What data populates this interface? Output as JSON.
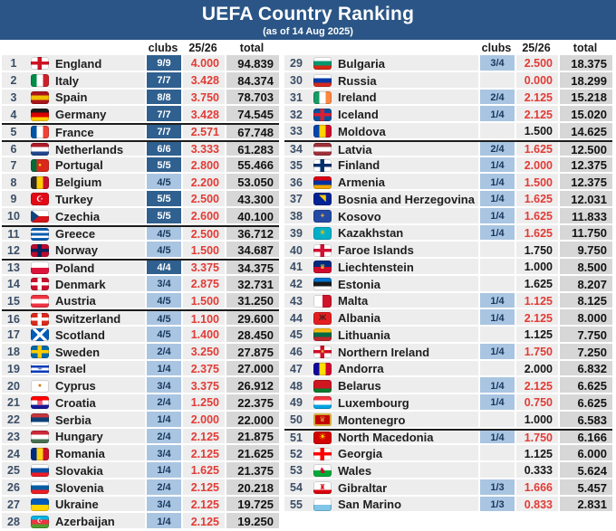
{
  "header": {
    "title": "UEFA Country Ranking",
    "subtitle": "(as of 14 Aug 2025)"
  },
  "columns": {
    "clubs": "clubs",
    "season": "25/26",
    "total": "total"
  },
  "colors": {
    "topbar": "#2A5586",
    "row_bg": "#EDEDED",
    "total_bg": "#D7D7D7",
    "clubs_full_bg": "#2F608F",
    "clubs_partial_bg": "#A9C5E2",
    "season_live": "#E23B36",
    "separator": "#1C1C1C"
  },
  "rows": [
    {
      "rank": 1,
      "country": "England",
      "clubs": "9/9",
      "clubs_style": "full",
      "season": "4.000",
      "season_red": true,
      "total": "94.839",
      "sep": false,
      "flag": {
        "t": "x",
        "bg": "#FFFFFF",
        "cc": "#CE1124"
      }
    },
    {
      "rank": 2,
      "country": "Italy",
      "clubs": "7/7",
      "clubs_style": "full",
      "season": "3.428",
      "season_red": true,
      "total": "84.374",
      "sep": false,
      "flag": {
        "t": "v",
        "c": [
          "#008C45",
          "#FFFFFF",
          "#CD212A"
        ]
      }
    },
    {
      "rank": 3,
      "country": "Spain",
      "clubs": "8/8",
      "clubs_style": "full",
      "season": "3.750",
      "season_red": true,
      "total": "78.703",
      "sep": false,
      "flag": {
        "t": "h",
        "c": [
          "#AA151B",
          "#F1BF00",
          "#AA151B"
        ]
      }
    },
    {
      "rank": 4,
      "country": "Germany",
      "clubs": "7/7",
      "clubs_style": "full",
      "season": "3.428",
      "season_red": true,
      "total": "74.545",
      "sep": false,
      "flag": {
        "t": "h",
        "c": [
          "#1A1A1A",
          "#DD0000",
          "#FFCE00"
        ]
      }
    },
    {
      "rank": 5,
      "country": "France",
      "clubs": "7/7",
      "clubs_style": "full",
      "season": "2.571",
      "season_red": true,
      "total": "67.748",
      "sep": true,
      "flag": {
        "t": "v",
        "c": [
          "#0055A4",
          "#FFFFFF",
          "#EF4135"
        ]
      }
    },
    {
      "rank": 6,
      "country": "Netherlands",
      "clubs": "6/6",
      "clubs_style": "full",
      "season": "3.333",
      "season_red": true,
      "total": "61.283",
      "sep": true,
      "flag": {
        "t": "h",
        "c": [
          "#AE1C28",
          "#FFFFFF",
          "#21468B"
        ]
      }
    },
    {
      "rank": 7,
      "country": "Portugal",
      "clubs": "5/5",
      "clubs_style": "full",
      "season": "2.800",
      "season_red": true,
      "total": "55.466",
      "sep": false,
      "flag": {
        "t": "v",
        "c": [
          "#046A38",
          "#DA291C",
          "#DA291C"
        ],
        "sym": "●",
        "sc": "#FFE900",
        "ss": 6
      }
    },
    {
      "rank": 8,
      "country": "Belgium",
      "clubs": "4/5",
      "clubs_style": "partial",
      "season": "2.200",
      "season_red": true,
      "total": "53.050",
      "sep": false,
      "flag": {
        "t": "v",
        "c": [
          "#2D2926",
          "#FFCD00",
          "#C8102E"
        ]
      }
    },
    {
      "rank": 9,
      "country": "Turkey",
      "clubs": "5/5",
      "clubs_style": "full",
      "season": "2.500",
      "season_red": true,
      "total": "43.300",
      "sep": false,
      "flag": {
        "t": "p",
        "bg": "#E30A17",
        "sym": "☪",
        "sc": "#FFFFFF",
        "ss": 9
      }
    },
    {
      "rank": 10,
      "country": "Czechia",
      "clubs": "5/5",
      "clubs_style": "full",
      "season": "2.600",
      "season_red": true,
      "total": "40.100",
      "sep": false,
      "flag": {
        "t": "h",
        "c": [
          "#FFFFFF",
          "#D7141A"
        ],
        "tri": "#11457E"
      }
    },
    {
      "rank": 11,
      "country": "Greece",
      "clubs": "4/5",
      "clubs_style": "partial",
      "season": "2.500",
      "season_red": true,
      "total": "36.712",
      "sep": true,
      "flag": {
        "t": "h",
        "c": [
          "#0D5EAF",
          "#FFFFFF",
          "#0D5EAF",
          "#FFFFFF",
          "#0D5EAF"
        ]
      }
    },
    {
      "rank": 12,
      "country": "Norway",
      "clubs": "4/5",
      "clubs_style": "partial",
      "season": "1.500",
      "season_red": true,
      "total": "34.687",
      "sep": false,
      "flag": {
        "t": "x",
        "bg": "#BA0C2F",
        "cc": "#00205B"
      }
    },
    {
      "rank": 13,
      "country": "Poland",
      "clubs": "4/4",
      "clubs_style": "full",
      "season": "3.375",
      "season_red": true,
      "total": "34.375",
      "sep": true,
      "flag": {
        "t": "h",
        "c": [
          "#FFFFFF",
          "#DC143C"
        ]
      }
    },
    {
      "rank": 14,
      "country": "Denmark",
      "clubs": "3/4",
      "clubs_style": "partial",
      "season": "2.875",
      "season_red": true,
      "total": "32.731",
      "sep": false,
      "flag": {
        "t": "x",
        "bg": "#C8102E",
        "cc": "#FFFFFF"
      }
    },
    {
      "rank": 15,
      "country": "Austria",
      "clubs": "4/5",
      "clubs_style": "partial",
      "season": "1.500",
      "season_red": true,
      "total": "31.250",
      "sep": false,
      "flag": {
        "t": "h",
        "c": [
          "#EF3340",
          "#FFFFFF",
          "#EF3340"
        ]
      }
    },
    {
      "rank": 16,
      "country": "Switzerland",
      "clubs": "4/5",
      "clubs_style": "partial",
      "season": "1.100",
      "season_red": true,
      "total": "29.600",
      "sep": true,
      "flag": {
        "t": "x",
        "bg": "#DA291C",
        "cc": "#FFFFFF"
      }
    },
    {
      "rank": 17,
      "country": "Scotland",
      "clubs": "4/5",
      "clubs_style": "partial",
      "season": "1.400",
      "season_red": true,
      "total": "28.450",
      "sep": false,
      "flag": {
        "t": "s",
        "bg": "#005EB8",
        "cc": "#FFFFFF"
      }
    },
    {
      "rank": 18,
      "country": "Sweden",
      "clubs": "2/4",
      "clubs_style": "partial",
      "season": "3.250",
      "season_red": true,
      "total": "27.875",
      "sep": false,
      "flag": {
        "t": "x",
        "bg": "#006AA7",
        "cc": "#FECC02"
      }
    },
    {
      "rank": 19,
      "country": "Israel",
      "clubs": "1/4",
      "clubs_style": "partial",
      "season": "2.375",
      "season_red": true,
      "total": "27.000",
      "sep": false,
      "flag": {
        "t": "h",
        "c": [
          "#FFFFFF",
          "#0038B8",
          "#FFFFFF",
          "#0038B8",
          "#FFFFFF"
        ],
        "sym": "✡",
        "sc": "#0038B8",
        "ss": 7
      }
    },
    {
      "rank": 20,
      "country": "Cyprus",
      "clubs": "3/4",
      "clubs_style": "partial",
      "season": "3.375",
      "season_red": true,
      "total": "26.912",
      "sep": false,
      "flag": {
        "t": "p",
        "bg": "#FFFFFF",
        "sym": "●",
        "sc": "#D57800",
        "ss": 7
      }
    },
    {
      "rank": 21,
      "country": "Croatia",
      "clubs": "2/4",
      "clubs_style": "partial",
      "season": "1.250",
      "season_red": true,
      "total": "22.375",
      "sep": false,
      "flag": {
        "t": "h",
        "c": [
          "#FF0000",
          "#FFFFFF",
          "#171796"
        ],
        "sym": "▦",
        "sc": "#D80027",
        "ss": 7
      }
    },
    {
      "rank": 22,
      "country": "Serbia",
      "clubs": "1/4",
      "clubs_style": "partial",
      "season": "2.000",
      "season_red": true,
      "total": "22.000",
      "sep": false,
      "flag": {
        "t": "h",
        "c": [
          "#C6363C",
          "#0C4076",
          "#FFFFFF"
        ]
      }
    },
    {
      "rank": 23,
      "country": "Hungary",
      "clubs": "2/4",
      "clubs_style": "partial",
      "season": "2.125",
      "season_red": true,
      "total": "21.875",
      "sep": false,
      "flag": {
        "t": "h",
        "c": [
          "#CE2939",
          "#FFFFFF",
          "#477050"
        ]
      }
    },
    {
      "rank": 24,
      "country": "Romania",
      "clubs": "3/4",
      "clubs_style": "partial",
      "season": "2.125",
      "season_red": true,
      "total": "21.625",
      "sep": false,
      "flag": {
        "t": "v",
        "c": [
          "#002B7F",
          "#FCD116",
          "#CE1126"
        ]
      }
    },
    {
      "rank": 25,
      "country": "Slovakia",
      "clubs": "1/4",
      "clubs_style": "partial",
      "season": "1.625",
      "season_red": true,
      "total": "21.375",
      "sep": false,
      "flag": {
        "t": "h",
        "c": [
          "#FFFFFF",
          "#0B4EA2",
          "#EE1C25"
        ]
      }
    },
    {
      "rank": 26,
      "country": "Slovenia",
      "clubs": "2/4",
      "clubs_style": "partial",
      "season": "2.125",
      "season_red": true,
      "total": "20.218",
      "sep": false,
      "flag": {
        "t": "h",
        "c": [
          "#FFFFFF",
          "#005DA4",
          "#ED1C24"
        ]
      }
    },
    {
      "rank": 27,
      "country": "Ukraine",
      "clubs": "3/4",
      "clubs_style": "partial",
      "season": "2.125",
      "season_red": true,
      "total": "19.725",
      "sep": false,
      "flag": {
        "t": "h",
        "c": [
          "#005BBB",
          "#FFD500"
        ]
      }
    },
    {
      "rank": 28,
      "country": "Azerbaijan",
      "clubs": "1/4",
      "clubs_style": "partial",
      "season": "2.125",
      "season_red": true,
      "total": "19.250",
      "sep": false,
      "flag": {
        "t": "h",
        "c": [
          "#00B5E2",
          "#EF3340",
          "#509E2F"
        ],
        "sym": "☪",
        "sc": "#FFFFFF",
        "ss": 7
      }
    },
    {
      "rank": 29,
      "country": "Bulgaria",
      "clubs": "3/4",
      "clubs_style": "partial",
      "season": "2.500",
      "season_red": true,
      "total": "18.375",
      "sep": false,
      "flag": {
        "t": "h",
        "c": [
          "#FFFFFF",
          "#00966E",
          "#D62612"
        ]
      }
    },
    {
      "rank": 30,
      "country": "Russia",
      "clubs": "",
      "clubs_style": "none",
      "season": "0.000",
      "season_red": true,
      "total": "18.299",
      "sep": false,
      "flag": {
        "t": "h",
        "c": [
          "#FFFFFF",
          "#0039A6",
          "#D52B1E"
        ]
      }
    },
    {
      "rank": 31,
      "country": "Ireland",
      "clubs": "2/4",
      "clubs_style": "partial",
      "season": "2.125",
      "season_red": true,
      "total": "15.218",
      "sep": false,
      "flag": {
        "t": "v",
        "c": [
          "#169B62",
          "#FFFFFF",
          "#FF883E"
        ]
      }
    },
    {
      "rank": 32,
      "country": "Iceland",
      "clubs": "1/4",
      "clubs_style": "partial",
      "season": "2.125",
      "season_red": true,
      "total": "15.020",
      "sep": false,
      "flag": {
        "t": "x",
        "bg": "#02529C",
        "cc": "#DC1E35"
      }
    },
    {
      "rank": 33,
      "country": "Moldova",
      "clubs": "",
      "clubs_style": "none",
      "season": "1.500",
      "season_red": false,
      "total": "14.625",
      "sep": false,
      "flag": {
        "t": "v",
        "c": [
          "#0046AE",
          "#FFD200",
          "#CC092F"
        ]
      }
    },
    {
      "rank": 34,
      "country": "Latvia",
      "clubs": "2/4",
      "clubs_style": "partial",
      "season": "1.625",
      "season_red": true,
      "total": "12.500",
      "sep": true,
      "flag": {
        "t": "h",
        "c": [
          "#9E3039",
          "#FFFFFF",
          "#9E3039"
        ]
      }
    },
    {
      "rank": 35,
      "country": "Finland",
      "clubs": "1/4",
      "clubs_style": "partial",
      "season": "2.000",
      "season_red": true,
      "total": "12.375",
      "sep": false,
      "flag": {
        "t": "x",
        "bg": "#FFFFFF",
        "cc": "#002F6C"
      }
    },
    {
      "rank": 36,
      "country": "Armenia",
      "clubs": "1/4",
      "clubs_style": "partial",
      "season": "1.500",
      "season_red": true,
      "total": "12.375",
      "sep": false,
      "flag": {
        "t": "h",
        "c": [
          "#D90012",
          "#0033A0",
          "#F2A800"
        ]
      }
    },
    {
      "rank": 37,
      "country": "Bosnia and Herzegovina",
      "clubs": "1/4",
      "clubs_style": "partial",
      "season": "1.625",
      "season_red": true,
      "total": "12.031",
      "sep": false,
      "flag": {
        "t": "p",
        "bg": "#002395",
        "sym": "◥",
        "sc": "#FECB00",
        "ss": 10
      }
    },
    {
      "rank": 38,
      "country": "Kosovo",
      "clubs": "1/4",
      "clubs_style": "partial",
      "season": "1.625",
      "season_red": true,
      "total": "11.833",
      "sep": false,
      "flag": {
        "t": "p",
        "bg": "#244AA5",
        "sym": "✦",
        "sc": "#D0A650",
        "ss": 8
      }
    },
    {
      "rank": 39,
      "country": "Kazakhstan",
      "clubs": "1/4",
      "clubs_style": "partial",
      "season": "1.625",
      "season_red": true,
      "total": "11.750",
      "sep": false,
      "flag": {
        "t": "p",
        "bg": "#00AFCA",
        "sym": "☀",
        "sc": "#FEC50C",
        "ss": 9
      }
    },
    {
      "rank": 40,
      "country": "Faroe Islands",
      "clubs": "",
      "clubs_style": "none",
      "season": "1.750",
      "season_red": false,
      "total": "9.750",
      "sep": false,
      "flag": {
        "t": "x",
        "bg": "#FFFFFF",
        "cc": "#D21034"
      }
    },
    {
      "rank": 41,
      "country": "Liechtenstein",
      "clubs": "",
      "clubs_style": "none",
      "season": "1.000",
      "season_red": false,
      "total": "8.500",
      "sep": false,
      "flag": {
        "t": "h",
        "c": [
          "#002B7F",
          "#CF092C"
        ],
        "sym": "♛",
        "sc": "#FFD83D",
        "ss": 7
      }
    },
    {
      "rank": 42,
      "country": "Estonia",
      "clubs": "",
      "clubs_style": "none",
      "season": "1.625",
      "season_red": false,
      "total": "8.207",
      "sep": false,
      "flag": {
        "t": "h",
        "c": [
          "#0072CE",
          "#1A1A1A",
          "#FFFFFF"
        ]
      }
    },
    {
      "rank": 43,
      "country": "Malta",
      "clubs": "1/4",
      "clubs_style": "partial",
      "season": "1.125",
      "season_red": true,
      "total": "8.125",
      "sep": false,
      "flag": {
        "t": "v",
        "c": [
          "#FFFFFF",
          "#CF142B"
        ]
      }
    },
    {
      "rank": 44,
      "country": "Albania",
      "clubs": "1/4",
      "clubs_style": "partial",
      "season": "2.125",
      "season_red": true,
      "total": "8.000",
      "sep": false,
      "flag": {
        "t": "p",
        "bg": "#E41E20",
        "sym": "Ж",
        "sc": "#1A1A1A",
        "ss": 9
      }
    },
    {
      "rank": 45,
      "country": "Lithuania",
      "clubs": "",
      "clubs_style": "none",
      "season": "1.125",
      "season_red": false,
      "total": "7.750",
      "sep": false,
      "flag": {
        "t": "h",
        "c": [
          "#FDB913",
          "#006A44",
          "#C1272D"
        ]
      }
    },
    {
      "rank": 46,
      "country": "Northern Ireland",
      "clubs": "1/4",
      "clubs_style": "partial",
      "season": "1.750",
      "season_red": true,
      "total": "7.250",
      "sep": false,
      "flag": {
        "t": "x",
        "bg": "#FFFFFF",
        "cc": "#D00C27",
        "sym": "✶",
        "sc": "#E7C63F",
        "ss": 7
      }
    },
    {
      "rank": 47,
      "country": "Andorra",
      "clubs": "",
      "clubs_style": "none",
      "season": "2.000",
      "season_red": false,
      "total": "6.832",
      "sep": false,
      "flag": {
        "t": "v",
        "c": [
          "#10069F",
          "#FEDD00",
          "#D50032"
        ]
      }
    },
    {
      "rank": 48,
      "country": "Belarus",
      "clubs": "1/4",
      "clubs_style": "partial",
      "season": "2.125",
      "season_red": true,
      "total": "6.625",
      "sep": false,
      "flag": {
        "t": "h",
        "c": [
          "#CE1720",
          "#CE1720",
          "#007C2E"
        ]
      }
    },
    {
      "rank": 49,
      "country": "Luxembourg",
      "clubs": "1/4",
      "clubs_style": "partial",
      "season": "0.750",
      "season_red": true,
      "total": "6.625",
      "sep": false,
      "flag": {
        "t": "h",
        "c": [
          "#EF3340",
          "#FFFFFF",
          "#00A2E1"
        ]
      }
    },
    {
      "rank": 50,
      "country": "Montenegro",
      "clubs": "",
      "clubs_style": "none",
      "season": "1.000",
      "season_red": false,
      "total": "6.583",
      "sep": false,
      "flag": {
        "t": "p",
        "bg": "#C40308",
        "bd": "#D3AE3B",
        "sym": "♛",
        "sc": "#D3AE3B",
        "ss": 8
      }
    },
    {
      "rank": 51,
      "country": "North Macedonia",
      "clubs": "1/4",
      "clubs_style": "partial",
      "season": "1.750",
      "season_red": true,
      "total": "6.166",
      "sep": true,
      "flag": {
        "t": "p",
        "bg": "#D20000",
        "sym": "☀",
        "sc": "#FFE600",
        "ss": 10
      }
    },
    {
      "rank": 52,
      "country": "Georgia",
      "clubs": "",
      "clubs_style": "none",
      "season": "1.125",
      "season_red": false,
      "total": "6.000",
      "sep": false,
      "flag": {
        "t": "x",
        "bg": "#FFFFFF",
        "cc": "#FF0000"
      }
    },
    {
      "rank": 53,
      "country": "Wales",
      "clubs": "",
      "clubs_style": "none",
      "season": "0.333",
      "season_red": false,
      "total": "5.624",
      "sep": false,
      "flag": {
        "t": "h",
        "c": [
          "#FFFFFF",
          "#00AB39"
        ],
        "sym": "♞",
        "sc": "#D30731",
        "ss": 9
      }
    },
    {
      "rank": 54,
      "country": "Gibraltar",
      "clubs": "1/3",
      "clubs_style": "partial",
      "season": "1.666",
      "season_red": true,
      "total": "5.457",
      "sep": false,
      "flag": {
        "t": "h",
        "c": [
          "#FFFFFF",
          "#FFFFFF",
          "#DA000C"
        ],
        "sym": "♜",
        "sc": "#DA000C",
        "ss": 8
      }
    },
    {
      "rank": 55,
      "country": "San Marino",
      "clubs": "1/3",
      "clubs_style": "partial",
      "season": "0.833",
      "season_red": true,
      "total": "2.831",
      "sep": false,
      "flag": {
        "t": "h",
        "c": [
          "#FFFFFF",
          "#7FC6E8"
        ]
      }
    }
  ],
  "layout": {
    "left_ranks": [
      1,
      28
    ],
    "right_ranks": [
      29,
      55
    ]
  }
}
